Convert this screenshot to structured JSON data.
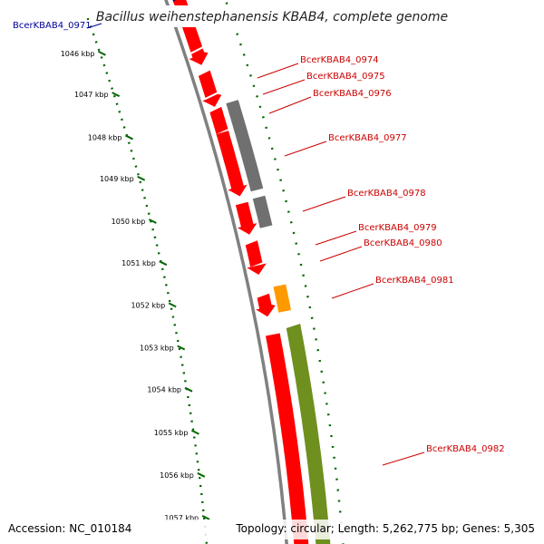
{
  "title": "Bacillus weihenstephanensis KBAB4, complete genome",
  "footer": {
    "accession": "Accession: NC_010184",
    "summary": "Topology: circular; Length: 5,262,775 bp; Genes: 5,305"
  },
  "colors": {
    "forward_gene": "#ff0000",
    "other_gene": "#707070",
    "highlight_gene": "#ff9900",
    "rna_gene": "#6f8f1f",
    "label_red": "#cc0000",
    "label_blue": "#000099",
    "backbone": "#808080",
    "tick_green": "#006600"
  },
  "ruler": {
    "ticks": [
      "1046 kbp",
      "1047 kbp",
      "1048 kbp",
      "1049 kbp",
      "1050 kbp",
      "1051 kbp",
      "1052 kbp",
      "1053 kbp",
      "1054 kbp",
      "1055 kbp",
      "1056 kbp",
      "1057 kbp"
    ]
  },
  "genes": [
    {
      "id": "g0971",
      "label": "BcerKBAB4_0971",
      "color": "blue"
    },
    {
      "id": "g0974",
      "label": "BcerKBAB4_0974",
      "color": "red"
    },
    {
      "id": "g0975",
      "label": "BcerKBAB4_0975",
      "color": "red"
    },
    {
      "id": "g0976",
      "label": "BcerKBAB4_0976",
      "color": "red"
    },
    {
      "id": "g0977",
      "label": "BcerKBAB4_0977",
      "color": "red"
    },
    {
      "id": "g0978",
      "label": "BcerKBAB4_0978",
      "color": "red"
    },
    {
      "id": "g0979",
      "label": "BcerKBAB4_0979",
      "color": "red"
    },
    {
      "id": "g0980",
      "label": "BcerKBAB4_0980",
      "color": "red"
    },
    {
      "id": "g0981",
      "label": "BcerKBAB4_0981",
      "color": "red"
    },
    {
      "id": "g0982",
      "label": "BcerKBAB4_0982",
      "color": "red"
    }
  ]
}
